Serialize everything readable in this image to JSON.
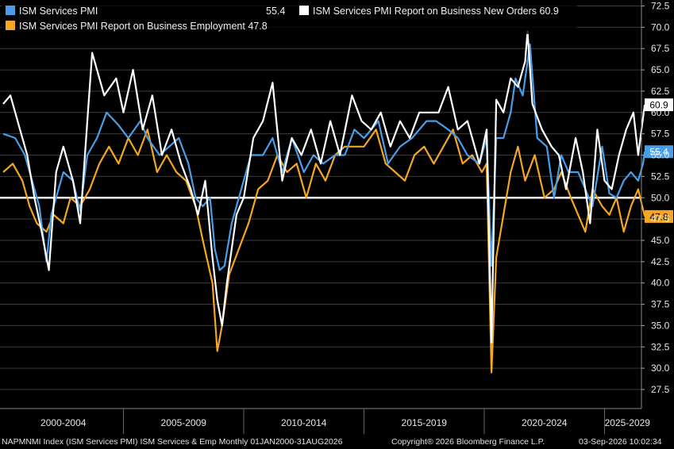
{
  "chart_data": {
    "type": "line",
    "ylim": [
      25,
      73
    ],
    "y_ticks": [
      27.5,
      30.0,
      32.5,
      35.0,
      37.5,
      40.0,
      42.5,
      45.0,
      47.5,
      50.0,
      52.5,
      55.0,
      57.5,
      60.0,
      62.5,
      65.0,
      67.5,
      70.0,
      72.5
    ],
    "x_period_labels": [
      "2000-2004",
      "2005-2009",
      "2010-2014",
      "2015-2019",
      "2020-2024",
      "2025-2029"
    ],
    "x_range": [
      "2000-01",
      "2026-08"
    ],
    "reference_line": 50.0,
    "grid": "horizontal",
    "legend_position": "top-left",
    "series": [
      {
        "name": "ISM Services PMI",
        "color": "#4a9ee8",
        "last_value": "55.4",
        "values": [
          [
            2000.0,
            57.5
          ],
          [
            2000.5,
            57.0
          ],
          [
            2000.9,
            55.0
          ],
          [
            2001.2,
            52.0
          ],
          [
            2001.5,
            49.0
          ],
          [
            2001.8,
            42.5
          ],
          [
            2002.0,
            48.0
          ],
          [
            2002.5,
            53.0
          ],
          [
            2002.9,
            52.0
          ],
          [
            2003.2,
            48.5
          ],
          [
            2003.5,
            55.0
          ],
          [
            2003.9,
            57.0
          ],
          [
            2004.3,
            60.0
          ],
          [
            2004.8,
            58.5
          ],
          [
            2005.2,
            57.0
          ],
          [
            2005.7,
            59.0
          ],
          [
            2006.0,
            57.0
          ],
          [
            2006.5,
            55.0
          ],
          [
            2006.9,
            56.0
          ],
          [
            2007.3,
            57.0
          ],
          [
            2007.7,
            54.0
          ],
          [
            2008.0,
            50.0
          ],
          [
            2008.3,
            49.0
          ],
          [
            2008.6,
            50.0
          ],
          [
            2008.8,
            44.0
          ],
          [
            2009.0,
            41.5
          ],
          [
            2009.2,
            42.0
          ],
          [
            2009.5,
            47.0
          ],
          [
            2009.8,
            50.0
          ],
          [
            2010.3,
            55.0
          ],
          [
            2010.8,
            55.0
          ],
          [
            2011.2,
            57.0
          ],
          [
            2011.6,
            53.0
          ],
          [
            2012.0,
            57.0
          ],
          [
            2012.5,
            53.0
          ],
          [
            2012.9,
            55.0
          ],
          [
            2013.3,
            54.0
          ],
          [
            2013.8,
            55.0
          ],
          [
            2014.2,
            55.0
          ],
          [
            2014.6,
            58.0
          ],
          [
            2015.0,
            57.0
          ],
          [
            2015.6,
            59.0
          ],
          [
            2016.0,
            54.0
          ],
          [
            2016.5,
            56.0
          ],
          [
            2017.0,
            57.0
          ],
          [
            2017.6,
            59.0
          ],
          [
            2018.0,
            59.0
          ],
          [
            2018.5,
            58.0
          ],
          [
            2018.9,
            57.0
          ],
          [
            2019.3,
            55.0
          ],
          [
            2019.8,
            54.0
          ],
          [
            2020.1,
            57.0
          ],
          [
            2020.3,
            42.0
          ],
          [
            2020.5,
            57.0
          ],
          [
            2020.8,
            57.0
          ],
          [
            2021.1,
            60.0
          ],
          [
            2021.3,
            64.0
          ],
          [
            2021.6,
            62.0
          ],
          [
            2021.9,
            68.0
          ],
          [
            2022.2,
            57.0
          ],
          [
            2022.6,
            56.0
          ],
          [
            2022.9,
            50.0
          ],
          [
            2023.2,
            55.0
          ],
          [
            2023.5,
            53.0
          ],
          [
            2023.9,
            53.0
          ],
          [
            2024.2,
            51.0
          ],
          [
            2024.5,
            49.0
          ],
          [
            2024.9,
            56.0
          ],
          [
            2025.2,
            50.5
          ],
          [
            2025.5,
            50.0
          ],
          [
            2025.8,
            52.0
          ],
          [
            2026.1,
            53.0
          ],
          [
            2026.4,
            52.0
          ],
          [
            2026.6,
            54.0
          ],
          [
            2026.67,
            55.4
          ]
        ]
      },
      {
        "name": "ISM Services PMI Report on Business New Orders",
        "color": "#ffffff",
        "last_value": "60.9",
        "values": [
          [
            2000.0,
            61.0
          ],
          [
            2000.3,
            62.0
          ],
          [
            2000.7,
            58.0
          ],
          [
            2001.0,
            55.0
          ],
          [
            2001.3,
            50.0
          ],
          [
            2001.6,
            46.0
          ],
          [
            2001.9,
            41.5
          ],
          [
            2002.2,
            53.0
          ],
          [
            2002.5,
            56.0
          ],
          [
            2002.9,
            52.0
          ],
          [
            2003.2,
            47.0
          ],
          [
            2003.5,
            59.0
          ],
          [
            2003.7,
            67.0
          ],
          [
            2004.2,
            62.0
          ],
          [
            2004.7,
            64.0
          ],
          [
            2005.0,
            60.0
          ],
          [
            2005.4,
            65.0
          ],
          [
            2005.8,
            58.0
          ],
          [
            2006.2,
            62.0
          ],
          [
            2006.6,
            55.0
          ],
          [
            2007.0,
            58.0
          ],
          [
            2007.4,
            54.0
          ],
          [
            2007.8,
            51.0
          ],
          [
            2008.1,
            48.0
          ],
          [
            2008.4,
            52.0
          ],
          [
            2008.7,
            43.0
          ],
          [
            2008.9,
            38.0
          ],
          [
            2009.1,
            35.0
          ],
          [
            2009.3,
            40.0
          ],
          [
            2009.7,
            48.0
          ],
          [
            2010.0,
            50.0
          ],
          [
            2010.4,
            57.0
          ],
          [
            2010.8,
            59.0
          ],
          [
            2011.2,
            63.5
          ],
          [
            2011.6,
            52.0
          ],
          [
            2012.0,
            57.0
          ],
          [
            2012.4,
            55.0
          ],
          [
            2012.8,
            58.0
          ],
          [
            2013.2,
            54.0
          ],
          [
            2013.6,
            59.0
          ],
          [
            2014.0,
            55.0
          ],
          [
            2014.5,
            62.0
          ],
          [
            2014.9,
            59.0
          ],
          [
            2015.3,
            58.0
          ],
          [
            2015.7,
            60.0
          ],
          [
            2016.1,
            56.0
          ],
          [
            2016.5,
            59.0
          ],
          [
            2016.9,
            57.0
          ],
          [
            2017.3,
            60.0
          ],
          [
            2017.8,
            60.0
          ],
          [
            2018.1,
            60.0
          ],
          [
            2018.5,
            63.0
          ],
          [
            2018.9,
            58.0
          ],
          [
            2019.3,
            59.0
          ],
          [
            2019.8,
            54.0
          ],
          [
            2020.1,
            58.0
          ],
          [
            2020.3,
            33.0
          ],
          [
            2020.5,
            61.5
          ],
          [
            2020.8,
            60.0
          ],
          [
            2021.1,
            64.0
          ],
          [
            2021.4,
            63.0
          ],
          [
            2021.7,
            66.0
          ],
          [
            2021.8,
            69.5
          ],
          [
            2022.0,
            61.0
          ],
          [
            2022.4,
            58.0
          ],
          [
            2022.8,
            56.0
          ],
          [
            2023.1,
            55.0
          ],
          [
            2023.4,
            51.0
          ],
          [
            2023.8,
            57.0
          ],
          [
            2024.1,
            53.0
          ],
          [
            2024.4,
            47.0
          ],
          [
            2024.7,
            58.0
          ],
          [
            2025.0,
            52.0
          ],
          [
            2025.3,
            51.0
          ],
          [
            2025.6,
            55.0
          ],
          [
            2025.9,
            58.0
          ],
          [
            2026.2,
            60.0
          ],
          [
            2026.4,
            55.0
          ],
          [
            2026.67,
            60.9
          ]
        ]
      },
      {
        "name": "ISM Services PMI Report on Business Employment",
        "color": "#f5a623",
        "last_value": "47.8",
        "values": [
          [
            2000.0,
            53.0
          ],
          [
            2000.4,
            54.0
          ],
          [
            2000.8,
            52.0
          ],
          [
            2001.1,
            49.0
          ],
          [
            2001.4,
            47.0
          ],
          [
            2001.8,
            46.0
          ],
          [
            2002.1,
            48.0
          ],
          [
            2002.5,
            47.0
          ],
          [
            2002.8,
            50.0
          ],
          [
            2003.2,
            49.0
          ],
          [
            2003.6,
            51.0
          ],
          [
            2004.0,
            54.0
          ],
          [
            2004.4,
            56.0
          ],
          [
            2004.8,
            54.0
          ],
          [
            2005.2,
            57.0
          ],
          [
            2005.6,
            55.0
          ],
          [
            2006.0,
            58.0
          ],
          [
            2006.4,
            53.0
          ],
          [
            2006.8,
            55.0
          ],
          [
            2007.2,
            53.0
          ],
          [
            2007.6,
            52.0
          ],
          [
            2008.0,
            49.0
          ],
          [
            2008.3,
            45.0
          ],
          [
            2008.7,
            40.0
          ],
          [
            2008.9,
            32.0
          ],
          [
            2009.1,
            35.0
          ],
          [
            2009.4,
            41.0
          ],
          [
            2009.8,
            44.0
          ],
          [
            2010.2,
            47.0
          ],
          [
            2010.6,
            51.0
          ],
          [
            2011.0,
            52.0
          ],
          [
            2011.4,
            55.0
          ],
          [
            2011.8,
            53.0
          ],
          [
            2012.2,
            54.0
          ],
          [
            2012.6,
            50.0
          ],
          [
            2013.0,
            54.0
          ],
          [
            2013.4,
            52.0
          ],
          [
            2013.8,
            55.0
          ],
          [
            2014.2,
            56.0
          ],
          [
            2014.6,
            56.0
          ],
          [
            2015.0,
            56.0
          ],
          [
            2015.5,
            58.0
          ],
          [
            2015.9,
            54.0
          ],
          [
            2016.3,
            53.0
          ],
          [
            2016.7,
            52.0
          ],
          [
            2017.1,
            55.0
          ],
          [
            2017.5,
            56.0
          ],
          [
            2017.9,
            54.0
          ],
          [
            2018.3,
            56.0
          ],
          [
            2018.7,
            58.0
          ],
          [
            2019.1,
            54.0
          ],
          [
            2019.5,
            55.0
          ],
          [
            2019.9,
            53.0
          ],
          [
            2020.1,
            54.0
          ],
          [
            2020.3,
            29.5
          ],
          [
            2020.5,
            43.0
          ],
          [
            2020.8,
            48.0
          ],
          [
            2021.1,
            53.0
          ],
          [
            2021.4,
            56.0
          ],
          [
            2021.7,
            52.0
          ],
          [
            2022.1,
            55.0
          ],
          [
            2022.5,
            50.0
          ],
          [
            2022.9,
            51.0
          ],
          [
            2023.2,
            53.0
          ],
          [
            2023.6,
            50.0
          ],
          [
            2023.9,
            48.0
          ],
          [
            2024.2,
            46.0
          ],
          [
            2024.5,
            51.0
          ],
          [
            2024.9,
            49.0
          ],
          [
            2025.2,
            48.0
          ],
          [
            2025.5,
            50.0
          ],
          [
            2025.8,
            46.0
          ],
          [
            2026.1,
            49.0
          ],
          [
            2026.4,
            51.0
          ],
          [
            2026.67,
            47.8
          ]
        ]
      }
    ]
  },
  "legend": {
    "items": [
      {
        "label": "ISM Services PMI",
        "value": "55.4",
        "color": "#4a9ee8"
      },
      {
        "label": "ISM Services PMI Report on Business New Orders",
        "value": "60.9",
        "color": "#ffffff"
      },
      {
        "label": "ISM Services PMI Report on Business Employment",
        "value": "47.8",
        "color": "#f5a623"
      }
    ]
  },
  "footer": {
    "left": "NAPMNMI Index (ISM Services PMI) ISM Services & Emp Monthly 01JAN2000-31AUG2026",
    "center": "Copyright® 2026 Bloomberg Finance L.P.",
    "right": "03-Sep-2026 10:02:34"
  }
}
